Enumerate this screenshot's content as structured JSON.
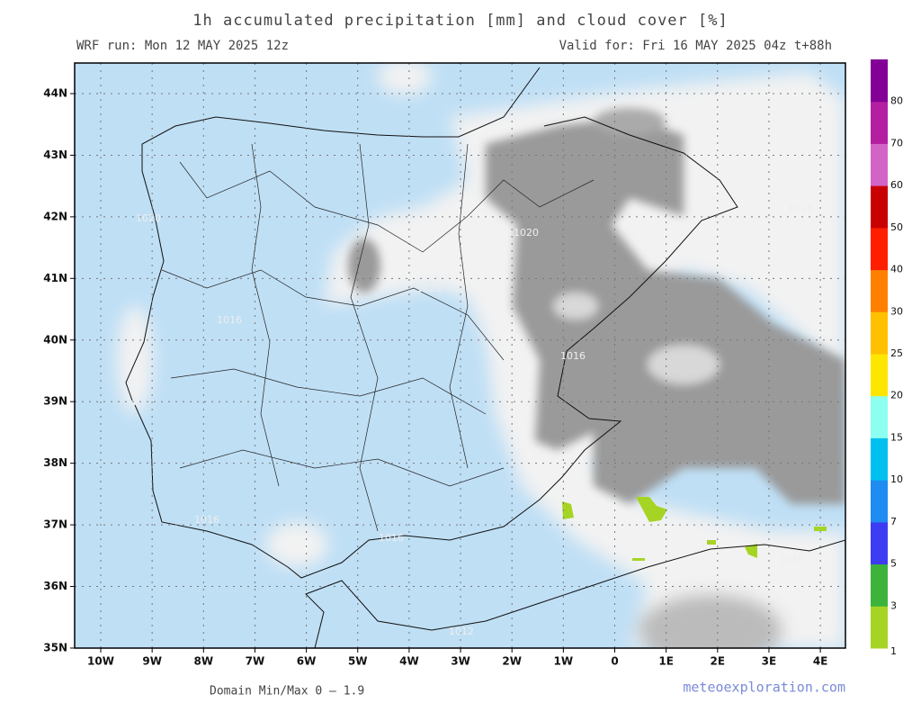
{
  "header": {
    "title": "1h accumulated precipitation [mm] and cloud cover [%]",
    "run": "WRF run: Mon 12 MAY 2025 12z",
    "valid": "Valid for: Fri 16 MAY 2025 04z  t+88h"
  },
  "map": {
    "lat_labels": [
      "44N",
      "43N",
      "42N",
      "41N",
      "40N",
      "39N",
      "38N",
      "37N",
      "36N",
      "35N"
    ],
    "lon_labels": [
      "10W",
      "9W",
      "8W",
      "7W",
      "6W",
      "5W",
      "4W",
      "3W",
      "2W",
      "1W",
      "0",
      "1E",
      "2E",
      "3E",
      "4E"
    ],
    "contour_labels": [
      "1020",
      "1020",
      "1020",
      "1016",
      "1016",
      "1016",
      "1016",
      "1012",
      "1016",
      "1016"
    ]
  },
  "colorbar": {
    "levels": [
      1,
      3,
      5,
      7,
      10,
      15,
      20,
      25,
      30,
      40,
      50,
      60,
      70,
      80
    ],
    "colors": [
      "#a6d424",
      "#3cb43c",
      "#3c3cf5",
      "#1e8cf0",
      "#00c0f0",
      "#8cfff0",
      "#ffe600",
      "#ffc000",
      "#ff8000",
      "#ff1e00",
      "#c80000",
      "#d264c8",
      "#b41ea0",
      "#820096"
    ]
  },
  "footer": {
    "minmax": "Domain Min/Max 0 — 1.9",
    "site": "meteoexploration.com"
  }
}
